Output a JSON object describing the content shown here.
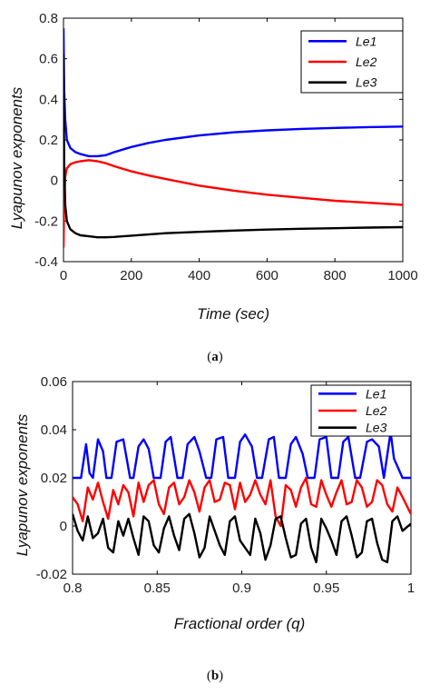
{
  "captions": [
    "(a)",
    "(b)"
  ],
  "caption_parts": {
    "a": {
      "open": "(",
      "letter": "a",
      "close": ")"
    },
    "b": {
      "open": "(",
      "letter": "b",
      "close": ")"
    }
  },
  "chart_data": [
    {
      "id": "a",
      "type": "line",
      "title": "",
      "xlabel": "Time (sec)",
      "ylabel": "Lyapunov exponents",
      "xlim": [
        0,
        1000
      ],
      "ylim": [
        -0.4,
        0.8
      ],
      "xticks": [
        0,
        200,
        400,
        600,
        800,
        1000
      ],
      "xtick_labels": [
        "0",
        "200",
        "400",
        "600",
        "800",
        "1000"
      ],
      "yticks": [
        -0.4,
        -0.2,
        0,
        0.2,
        0.4,
        0.6,
        0.8
      ],
      "ytick_labels": [
        "-0.4",
        "-0.2",
        "0",
        "0.2",
        "0.4",
        "0.6",
        "0.8"
      ],
      "grid": false,
      "legend_position": "top-right",
      "series": [
        {
          "name": "Le1",
          "color": "#0000ff",
          "x": [
            0,
            2,
            5,
            10,
            20,
            35,
            50,
            75,
            100,
            125,
            150,
            200,
            250,
            300,
            400,
            500,
            600,
            700,
            800,
            900,
            1000
          ],
          "y": [
            0.75,
            0.45,
            0.3,
            0.2,
            0.16,
            0.14,
            0.13,
            0.12,
            0.12,
            0.125,
            0.14,
            0.165,
            0.185,
            0.2,
            0.222,
            0.237,
            0.247,
            0.254,
            0.259,
            0.263,
            0.266
          ]
        },
        {
          "name": "Le2",
          "color": "#ff0000",
          "x": [
            0,
            2,
            5,
            10,
            20,
            35,
            50,
            75,
            100,
            125,
            150,
            200,
            250,
            300,
            400,
            500,
            600,
            700,
            800,
            900,
            1000
          ],
          "y": [
            -0.33,
            -0.1,
            0.02,
            0.06,
            0.08,
            0.09,
            0.095,
            0.1,
            0.095,
            0.085,
            0.07,
            0.045,
            0.025,
            0.008,
            -0.025,
            -0.05,
            -0.07,
            -0.085,
            -0.1,
            -0.11,
            -0.12
          ]
        },
        {
          "name": "Le3",
          "color": "#000000",
          "x": [
            0,
            2,
            5,
            10,
            20,
            35,
            50,
            75,
            100,
            125,
            150,
            200,
            250,
            300,
            400,
            500,
            600,
            700,
            800,
            900,
            1000
          ],
          "y": [
            0.62,
            0.1,
            -0.12,
            -0.2,
            -0.24,
            -0.26,
            -0.27,
            -0.275,
            -0.28,
            -0.28,
            -0.278,
            -0.272,
            -0.266,
            -0.26,
            -0.253,
            -0.247,
            -0.242,
            -0.238,
            -0.235,
            -0.232,
            -0.23
          ]
        }
      ]
    },
    {
      "id": "b",
      "type": "line",
      "title": "",
      "xlabel": "Fractional order (q)",
      "ylabel": "Lyapunov exponents",
      "xlim": [
        0.8,
        1
      ],
      "ylim": [
        -0.02,
        0.06
      ],
      "xticks": [
        0.8,
        0.85,
        0.9,
        0.95,
        1
      ],
      "xtick_labels": [
        "0.8",
        "0.85",
        "0.9",
        "0.95",
        "1"
      ],
      "yticks": [
        -0.02,
        0,
        0.02,
        0.04,
        0.06
      ],
      "ytick_labels": [
        "-0.02",
        "0",
        "0.02",
        "0.04",
        "0.06"
      ],
      "grid": false,
      "legend_position": "top-right",
      "series": [
        {
          "name": "Le1",
          "color": "#0000ff",
          "x": [
            0.8,
            0.805,
            0.808,
            0.81,
            0.812,
            0.815,
            0.818,
            0.82,
            0.823,
            0.826,
            0.83,
            0.834,
            0.836,
            0.839,
            0.842,
            0.845,
            0.848,
            0.852,
            0.855,
            0.858,
            0.862,
            0.865,
            0.868,
            0.872,
            0.875,
            0.879,
            0.882,
            0.885,
            0.889,
            0.892,
            0.896,
            0.899,
            0.902,
            0.906,
            0.909,
            0.912,
            0.916,
            0.919,
            0.922,
            0.926,
            0.929,
            0.932,
            0.936,
            0.939,
            0.943,
            0.946,
            0.95,
            0.953,
            0.957,
            0.96,
            0.963,
            0.967,
            0.97,
            0.974,
            0.977,
            0.981,
            0.984,
            0.988,
            0.99,
            0.995,
            1.0
          ],
          "y": [
            0.02,
            0.02,
            0.034,
            0.022,
            0.02,
            0.036,
            0.031,
            0.02,
            0.02,
            0.035,
            0.036,
            0.02,
            0.02,
            0.033,
            0.036,
            0.032,
            0.02,
            0.02,
            0.035,
            0.037,
            0.02,
            0.02,
            0.034,
            0.037,
            0.031,
            0.02,
            0.02,
            0.036,
            0.037,
            0.02,
            0.02,
            0.035,
            0.038,
            0.033,
            0.02,
            0.02,
            0.036,
            0.037,
            0.02,
            0.02,
            0.034,
            0.037,
            0.03,
            0.02,
            0.02,
            0.036,
            0.037,
            0.02,
            0.02,
            0.035,
            0.037,
            0.02,
            0.02,
            0.035,
            0.036,
            0.033,
            0.02,
            0.039,
            0.028,
            0.02,
            0.02
          ]
        },
        {
          "name": "Le2",
          "color": "#ff0000",
          "x": [
            0.8,
            0.803,
            0.806,
            0.809,
            0.812,
            0.815,
            0.818,
            0.821,
            0.824,
            0.827,
            0.83,
            0.833,
            0.836,
            0.839,
            0.842,
            0.845,
            0.848,
            0.851,
            0.854,
            0.857,
            0.86,
            0.863,
            0.866,
            0.869,
            0.872,
            0.875,
            0.878,
            0.881,
            0.884,
            0.887,
            0.89,
            0.893,
            0.896,
            0.899,
            0.902,
            0.905,
            0.908,
            0.911,
            0.914,
            0.917,
            0.92,
            0.923,
            0.926,
            0.929,
            0.932,
            0.935,
            0.938,
            0.941,
            0.944,
            0.947,
            0.95,
            0.953,
            0.956,
            0.959,
            0.962,
            0.965,
            0.968,
            0.971,
            0.974,
            0.977,
            0.98,
            0.983,
            0.986,
            0.989,
            0.992,
            0.995,
            1.0
          ],
          "y": [
            0.012,
            0.009,
            0.002,
            0.016,
            0.011,
            0.018,
            0.01,
            0.003,
            0.015,
            0.009,
            0.017,
            0.014,
            0.004,
            0.018,
            0.01,
            0.017,
            0.019,
            0.009,
            0.005,
            0.016,
            0.018,
            0.009,
            0.012,
            0.019,
            0.014,
            0.006,
            0.016,
            0.019,
            0.01,
            0.011,
            0.018,
            0.017,
            0.007,
            0.018,
            0.01,
            0.013,
            0.019,
            0.013,
            0.009,
            0.019,
            0.004,
            0.0,
            0.017,
            0.015,
            0.008,
            0.016,
            0.02,
            0.009,
            0.008,
            0.019,
            0.013,
            0.008,
            0.014,
            0.019,
            0.009,
            0.01,
            0.019,
            0.016,
            0.008,
            0.01,
            0.019,
            0.017,
            0.009,
            0.006,
            0.016,
            0.012,
            0.005
          ]
        },
        {
          "name": "Le3",
          "color": "#000000",
          "x": [
            0.8,
            0.803,
            0.806,
            0.809,
            0.812,
            0.815,
            0.818,
            0.821,
            0.824,
            0.827,
            0.83,
            0.833,
            0.836,
            0.839,
            0.842,
            0.845,
            0.848,
            0.851,
            0.854,
            0.857,
            0.86,
            0.863,
            0.866,
            0.869,
            0.872,
            0.875,
            0.878,
            0.881,
            0.884,
            0.887,
            0.89,
            0.893,
            0.896,
            0.899,
            0.902,
            0.905,
            0.908,
            0.911,
            0.914,
            0.917,
            0.92,
            0.923,
            0.926,
            0.929,
            0.932,
            0.935,
            0.938,
            0.941,
            0.944,
            0.947,
            0.95,
            0.953,
            0.956,
            0.959,
            0.962,
            0.965,
            0.968,
            0.971,
            0.974,
            0.977,
            0.98,
            0.983,
            0.986,
            0.989,
            0.992,
            0.995,
            1.0
          ],
          "y": [
            0.005,
            -0.002,
            -0.006,
            0.004,
            -0.005,
            -0.003,
            0.003,
            -0.009,
            -0.011,
            0.002,
            -0.004,
            0.003,
            -0.005,
            -0.012,
            0.004,
            0.002,
            -0.008,
            -0.011,
            -0.001,
            0.004,
            -0.004,
            -0.01,
            0.003,
            0.005,
            -0.003,
            -0.013,
            -0.009,
            0.004,
            -0.002,
            -0.008,
            -0.012,
            0.002,
            0.004,
            -0.006,
            -0.009,
            -0.012,
            0.003,
            -0.003,
            -0.014,
            -0.008,
            0.003,
            0.004,
            -0.005,
            -0.013,
            -0.012,
            0.001,
            0.003,
            -0.009,
            -0.015,
            0.003,
            -0.001,
            -0.006,
            -0.012,
            0.002,
            0.004,
            -0.004,
            -0.013,
            -0.011,
            0.002,
            0.003,
            -0.007,
            -0.014,
            -0.015,
            0.002,
            0.004,
            -0.002,
            0.001
          ]
        }
      ]
    }
  ]
}
